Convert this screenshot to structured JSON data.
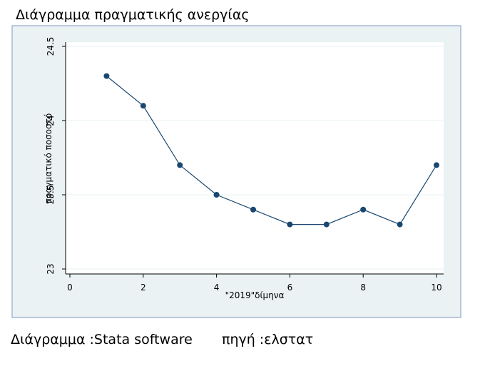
{
  "title": "Διάγραμμα πραγματικής ανεργίας",
  "footer": {
    "source_left": "Διάγραμμα :Stata software",
    "source_right": "πηγή :ελστατ"
  },
  "chart_data": {
    "type": "line",
    "x_label": "\"2019\"δίμηνα",
    "y_label": "πραγματικό ποσοστό",
    "x": [
      1,
      2,
      3,
      4,
      5,
      6,
      7,
      8,
      9,
      10
    ],
    "series": [
      {
        "color": "#1a476f",
        "values": [
          24.3,
          24.1,
          23.7,
          23.5,
          23.4,
          23.3,
          23.3,
          23.4,
          23.3,
          23.7
        ]
      }
    ],
    "xlim": [
      0,
      10
    ],
    "xticks": [
      0,
      2,
      4,
      6,
      8,
      10
    ],
    "ylim": [
      23,
      24.5
    ],
    "yticks": [
      23,
      23.5,
      24,
      24.5
    ],
    "grid": true
  }
}
